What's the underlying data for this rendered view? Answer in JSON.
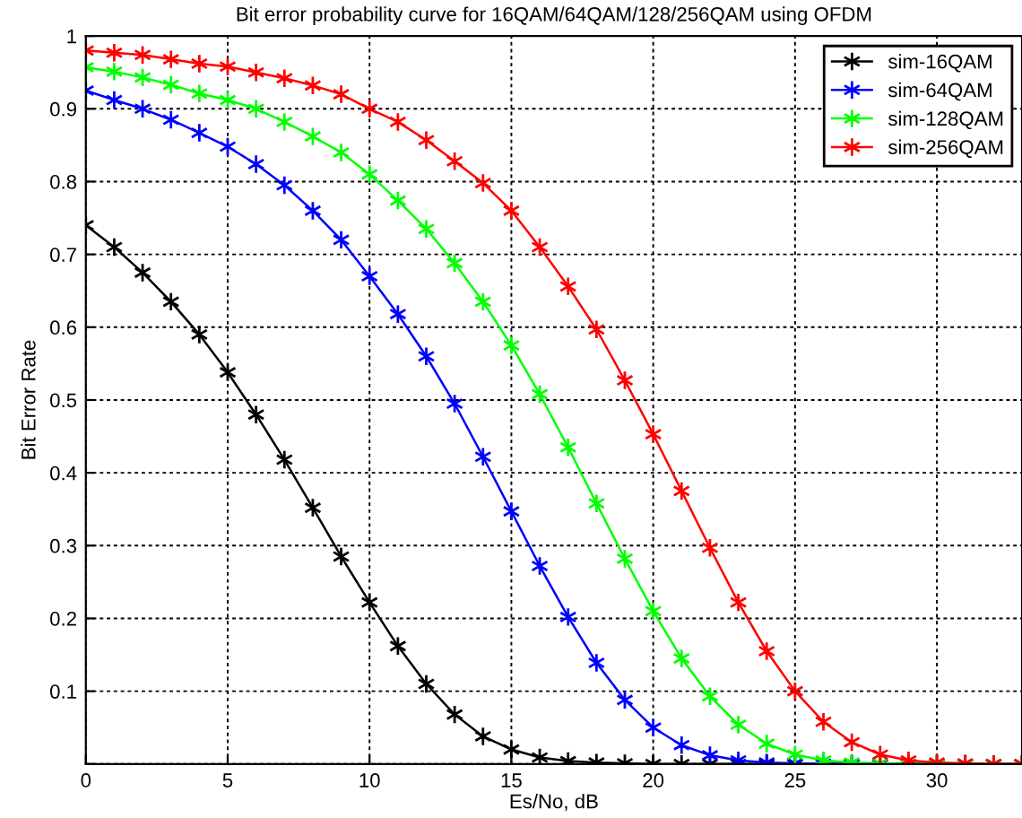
{
  "chart_data": {
    "type": "line",
    "title": "Bit error probability curve for 16QAM/64QAM/128/256QAM using OFDM",
    "xlabel": "Es/No, dB",
    "ylabel": "Bit Error Rate",
    "x": [
      0,
      1,
      2,
      3,
      4,
      5,
      6,
      7,
      8,
      9,
      10,
      11,
      12,
      13,
      14,
      15,
      16,
      17,
      18,
      19,
      20,
      21,
      22,
      23,
      24,
      25,
      26,
      27,
      28,
      29,
      30,
      31,
      32,
      33
    ],
    "series": [
      {
        "name": "sim-16QAM",
        "color": "#000000",
        "values": [
          0.74,
          0.71,
          0.675,
          0.635,
          0.59,
          0.538,
          0.48,
          0.418,
          0.352,
          0.285,
          0.222,
          0.162,
          0.11,
          0.068,
          0.038,
          0.02,
          0.009,
          0.004,
          0.002,
          0.001,
          0,
          0,
          0,
          0,
          0,
          0,
          0,
          0,
          0,
          0,
          0,
          0,
          0,
          0
        ]
      },
      {
        "name": "sim-64QAM",
        "color": "#0000ff",
        "values": [
          0.925,
          0.912,
          0.9,
          0.885,
          0.867,
          0.848,
          0.824,
          0.795,
          0.76,
          0.72,
          0.67,
          0.618,
          0.56,
          0.495,
          0.422,
          0.347,
          0.272,
          0.202,
          0.139,
          0.088,
          0.05,
          0.026,
          0.012,
          0.005,
          0.002,
          0.001,
          0,
          0,
          0,
          0,
          null,
          null,
          null,
          null
        ]
      },
      {
        "name": "sim-128QAM",
        "color": "#00ff00",
        "values": [
          0.957,
          0.951,
          0.943,
          0.933,
          0.921,
          0.912,
          0.9,
          0.882,
          0.862,
          0.84,
          0.81,
          0.774,
          0.735,
          0.688,
          0.635,
          0.575,
          0.508,
          0.435,
          0.358,
          0.282,
          0.21,
          0.145,
          0.093,
          0.054,
          0.028,
          0.013,
          0.005,
          0.002,
          0.001,
          0,
          0,
          0,
          0,
          0
        ]
      },
      {
        "name": "sim-256QAM",
        "color": "#ff0000",
        "values": [
          0.98,
          0.977,
          0.974,
          0.968,
          0.962,
          0.958,
          0.95,
          0.942,
          0.932,
          0.92,
          0.9,
          0.882,
          0.857,
          0.828,
          0.798,
          0.76,
          0.71,
          0.656,
          0.597,
          0.527,
          0.453,
          0.375,
          0.297,
          0.222,
          0.155,
          0.1,
          0.058,
          0.03,
          0.013,
          0.005,
          0.002,
          0.001,
          0,
          0
        ]
      }
    ],
    "xlim": [
      0,
      33
    ],
    "xticks": [
      0,
      5,
      10,
      15,
      20,
      25,
      30
    ],
    "ylim": [
      0,
      1
    ],
    "yticks": [
      {
        "value": 0,
        "label": null
      },
      0.1,
      0.2,
      0.3,
      0.4,
      0.5,
      0.6,
      0.7,
      0.8,
      0.9,
      1
    ],
    "grid": true,
    "legend": "top right",
    "marker": "cross",
    "line_style": "solid"
  }
}
